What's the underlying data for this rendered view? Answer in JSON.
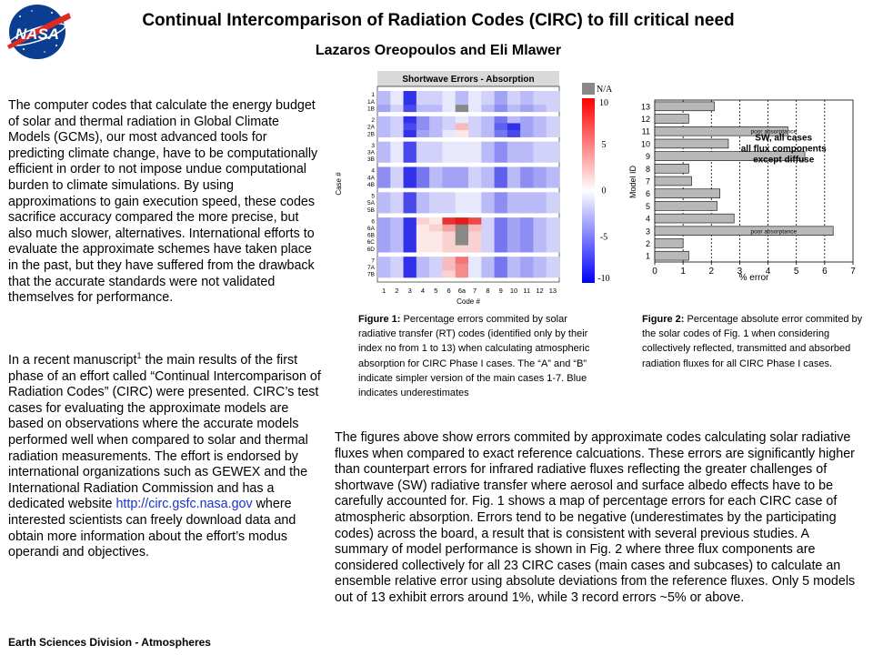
{
  "header": {
    "title": "Continual Intercomparison of Radiation Codes (CIRC) to fill critical need",
    "authors": "Lazaros Oreopoulos and Eli Mlawer",
    "logo_text": "NASA"
  },
  "left_column": {
    "para1": "The computer codes that calculate the energy budget of solar and thermal radiation in Global Climate Models (GCMs), our most advanced tools for predicting climate change, have to be computationally efficient in order to not impose undue computational burden to climate simulations. By using approximations to gain execution speed, these codes sacrifice accuracy compared the more precise, but also much slower, alternatives. International efforts to evaluate the approximate schemes have taken place in the past, but they have suffered from the drawback that the accurate standards were not validated themselves for performance.",
    "para2_a": "In a recent manuscript",
    "para2_sup": "1",
    "para2_b": " the main results of the first phase of an effort called “Continual Intercomparison of Radiation Codes” (CIRC) were presented. CIRC’s test cases for evaluating the approximate models are based on observations where the accurate models performed well when compared to solar and thermal radiation measurements. The effort is endorsed by international organizations such as GEWEX and the International Radiation Commission and has a dedicated website ",
    "para2_link": "http://circ.gsfc.nasa.gov",
    "para2_c": " where interested scientists can freely download data and obtain more information about the effort’s modus operandi and objectives."
  },
  "footer": "Earth Sciences Division - Atmospheres",
  "figure1": {
    "caption_label": "Figure 1:",
    "caption_text": " Percentage errors commited by solar radiative transfer (RT)  codes (identified only by their index no from 1 to 13) when calculating atmospheric absorption for CIRC Phase I cases. The “A” and “B” indicate simpler version of the main cases 1-7. Blue indicates underestimates",
    "chart_data": {
      "type": "heatmap",
      "title": "Shortwave Errors - Absorption",
      "xlabel": "Code #",
      "ylabel": "Case #",
      "x_ticks": [
        "1",
        "2",
        "3",
        "4",
        "5",
        "6",
        "6a",
        "7",
        "8",
        "9",
        "10",
        "11",
        "12",
        "13"
      ],
      "y_ticks": [
        "1",
        "1A",
        "1B",
        "2",
        "2A",
        "2B",
        "3",
        "3A",
        "3B",
        "4",
        "4A",
        "4B",
        "5",
        "5A",
        "5B",
        "6",
        "6A",
        "6B",
        "6C",
        "6D",
        "7",
        "7A",
        "7B"
      ],
      "colorbar_ticks": [
        "10",
        "5",
        "0",
        "-5",
        "-10"
      ],
      "colorbar_na": "N/A",
      "range": [
        -10,
        10
      ],
      "na_color": "#888888",
      "pos_color": "#e61a1a",
      "neg_color": "#1a1ae6",
      "rows": [
        [
          -3,
          -1,
          -9,
          -2,
          -2,
          -1,
          -3,
          -1,
          -2,
          -4,
          -2,
          -3,
          -2,
          -2
        ],
        [
          -3,
          -1,
          -9,
          -2,
          -2,
          -1,
          -3,
          -1,
          -2,
          -4,
          -2,
          -3,
          -2,
          -2
        ],
        [
          -4,
          -2,
          -8,
          -3,
          -3,
          -1,
          "NA",
          -1,
          -3,
          -5,
          -3,
          -4,
          -3,
          -2
        ],
        [
          -3,
          -2,
          -9,
          -5,
          -3,
          -2,
          -1,
          -2,
          -3,
          -6,
          -3,
          -4,
          -3,
          -2
        ],
        [
          -3,
          -2,
          -8,
          -5,
          -3,
          -2,
          3,
          -2,
          -3,
          -7,
          -9,
          -4,
          -3,
          -2
        ],
        [
          -3,
          -2,
          -9,
          -4,
          -3,
          -1,
          1,
          -2,
          -3,
          -6,
          -8,
          -4,
          -3,
          -2
        ],
        [
          -3,
          -1,
          -8,
          -2,
          -2,
          -1,
          -1,
          -1,
          -3,
          -5,
          -3,
          -3,
          -2,
          -2
        ],
        [
          -3,
          -1,
          -8,
          -2,
          -2,
          -1,
          -1,
          -1,
          -3,
          -5,
          -3,
          -3,
          -2,
          -2
        ],
        [
          -3,
          -1,
          -8,
          -2,
          -2,
          -1,
          -1,
          -1,
          -3,
          -5,
          -3,
          -3,
          -2,
          -2
        ],
        [
          -5,
          -2,
          -9,
          -6,
          -3,
          -4,
          -4,
          -2,
          -3,
          -7,
          -3,
          -5,
          -4,
          -3
        ],
        [
          -5,
          -2,
          -9,
          -6,
          -3,
          -4,
          -4,
          -2,
          -3,
          -7,
          -3,
          -5,
          -4,
          -3
        ],
        [
          -5,
          -2,
          -9,
          -6,
          -3,
          -4,
          -4,
          -2,
          -3,
          -7,
          -3,
          -5,
          -4,
          -3
        ],
        [
          -3,
          -2,
          -8,
          -3,
          -2,
          -2,
          -1,
          -1,
          -3,
          -5,
          -3,
          -3,
          -3,
          -2
        ],
        [
          -3,
          -2,
          -8,
          -3,
          -2,
          -2,
          -1,
          -1,
          -3,
          -5,
          -3,
          -3,
          -3,
          -2
        ],
        [
          -3,
          -2,
          -8,
          -3,
          -2,
          -2,
          -1,
          -1,
          -3,
          -5,
          -3,
          -3,
          -3,
          -2
        ],
        [
          -4,
          -3,
          -9,
          2,
          1,
          9,
          10,
          8,
          -2,
          -6,
          -4,
          -5,
          -3,
          -2
        ],
        [
          -4,
          -3,
          -9,
          1,
          2,
          4,
          "NA",
          3,
          -2,
          -6,
          -4,
          -5,
          -3,
          -2
        ],
        [
          -4,
          -3,
          -9,
          1,
          1,
          2,
          "NA",
          2,
          -2,
          -6,
          -4,
          -5,
          -3,
          -2
        ],
        [
          -4,
          -3,
          -9,
          1,
          1,
          2,
          "NA",
          2,
          -2,
          -6,
          -4,
          -5,
          -3,
          -2
        ],
        [
          -4,
          -3,
          -9,
          1,
          1,
          2,
          2,
          2,
          -2,
          -6,
          -4,
          -5,
          -3,
          -2
        ],
        [
          -3,
          -2,
          -9,
          -3,
          -2,
          3,
          6,
          -1,
          -3,
          -6,
          -3,
          -4,
          -3,
          -2
        ],
        [
          -3,
          -2,
          -9,
          -3,
          -2,
          3,
          5,
          -1,
          -3,
          -6,
          -3,
          -4,
          -3,
          -2
        ],
        [
          -3,
          -2,
          -9,
          -3,
          -2,
          2,
          5,
          -1,
          -3,
          -6,
          -3,
          -4,
          -3,
          -2
        ]
      ]
    }
  },
  "figure2": {
    "caption_label": "Figure 2:",
    "caption_text": " Percentage absolute error commited by the solar codes of Fig. 1 when considering collectively reflected, transmitted and absorbed radiation fluxes for all CIRC Phase I cases.",
    "chart_data": {
      "type": "bar",
      "orientation": "horizontal",
      "xlabel": "% error",
      "ylabel": "Model ID",
      "xlim": [
        0,
        7
      ],
      "x_ticks": [
        "0",
        "1",
        "2",
        "3",
        "4",
        "5",
        "6",
        "7"
      ],
      "categories": [
        "1",
        "2",
        "3",
        "4",
        "5",
        "6",
        "7",
        "8",
        "9",
        "10",
        "11",
        "12",
        "13"
      ],
      "values": [
        1.2,
        1.0,
        6.3,
        2.8,
        2.2,
        2.3,
        1.3,
        1.2,
        5.3,
        2.6,
        4.7,
        1.2,
        2.1
      ],
      "bar_labels": {
        "3": "poor absorptance",
        "11": "poor absorptance"
      },
      "annotation": [
        "SW, all cases",
        "all flux components",
        "except diffuse"
      ],
      "bar_color": "#b8b8b8"
    }
  },
  "right_text": "The figures above show errors commited by approximate codes calculating solar radiative fluxes when compared to exact reference calcuations. These errors are significantly higher than counterpart errors for infrared radiative fluxes reflecting the greater challenges of shortwave (SW) radiative transfer where aerosol and surface albedo effects have to be carefully accounted for. Fig. 1 shows a map of percentage errors for each CIRC case of atmospheric absorption. Errors tend to be negative (underestimates by the participating codes) across the board, a result that is consistent with several previous studies. A summary of model performance is shown in Fig. 2 where three flux components are considered collectively for all 23 CIRC cases (main cases and subcases) to calculate an ensemble relative error using absolute deviations from the reference fluxes. Only 5 models out of 13 exhibit errors around 1%, while 3 record errors ~5% or above."
}
